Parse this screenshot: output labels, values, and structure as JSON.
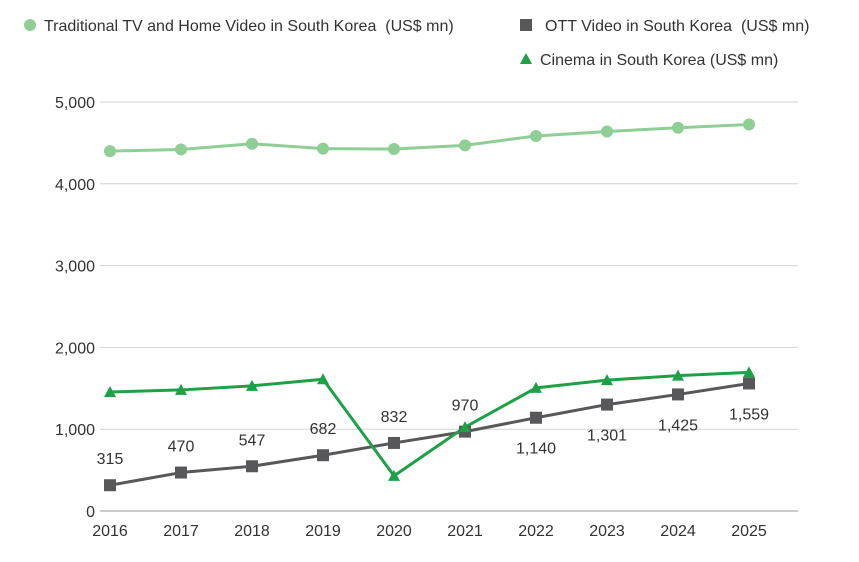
{
  "chart_data": {
    "type": "line",
    "title": "",
    "xlabel": "",
    "ylabel": "",
    "x": [
      "2016",
      "2017",
      "2018",
      "2019",
      "2020",
      "2021",
      "2022",
      "2023",
      "2024",
      "2025"
    ],
    "ylim": [
      0,
      5000
    ],
    "yticks": [
      0,
      1000,
      2000,
      3000,
      4000,
      5000
    ],
    "ytick_labels": [
      "0",
      "1,000",
      "2,000",
      "3,000",
      "4,000",
      "5,000"
    ],
    "grid": true,
    "legend_position": "top-right",
    "series": [
      {
        "name": "Traditional TV and Home Video in South Korea  (US$ mn)",
        "marker": "circle",
        "color": "#8fcf95",
        "values": [
          4400,
          4420,
          4490,
          4430,
          4425,
          4470,
          4585,
          4640,
          4685,
          4725
        ]
      },
      {
        "name": "OTT Video in South Korea  (US$ mn)",
        "marker": "square",
        "color": "#58585a",
        "values": [
          315,
          470,
          547,
          682,
          832,
          970,
          1140,
          1301,
          1425,
          1559
        ],
        "labels": [
          "315",
          "470",
          "547",
          "682",
          "832",
          "970",
          "1,140",
          "1,301",
          "1,425",
          "1,559"
        ]
      },
      {
        "name": "Cinema in South Korea (US$ mn)",
        "marker": "triangle",
        "color": "#1ea046",
        "values": [
          1455,
          1480,
          1530,
          1610,
          430,
          1025,
          1505,
          1600,
          1655,
          1695
        ]
      }
    ]
  }
}
